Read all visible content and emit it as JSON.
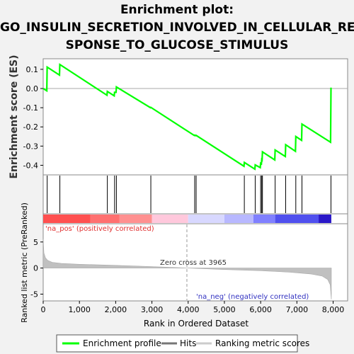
{
  "title": {
    "line1": "Enrichment plot:",
    "line2": "GO_INSULIN_SECRETION_INVOLVED_IN_CELLULAR_RE",
    "line3": "SPONSE_TO_GLUCOSE_STIMULUS"
  },
  "chart_data": {
    "type": "line",
    "xlabel": "Rank in Ordered Dataset",
    "xlim": [
      0,
      8400
    ],
    "x_ticks": [
      0,
      1000,
      2000,
      3000,
      4000,
      5000,
      6000,
      7000,
      8000
    ],
    "x_tick_labels": [
      "0",
      "1,000",
      "2,000",
      "3,000",
      "4,000",
      "5,000",
      "6,000",
      "7,000",
      "8,000"
    ],
    "es_panel": {
      "ylabel": "Enrichment score (ES)",
      "ylim": [
        -0.45,
        0.155
      ],
      "y_ticks": [
        0.1,
        0.0,
        -0.1,
        -0.2,
        -0.3,
        -0.4
      ],
      "y_tick_labels": [
        "0.1",
        "0.0",
        "-0.1",
        "-0.2",
        "-0.3",
        "-0.4"
      ],
      "series_name": "Enrichment profile",
      "color": "#00ff00",
      "points": [
        [
          0,
          0.0
        ],
        [
          100,
          -0.012
        ],
        [
          110,
          0.112
        ],
        [
          450,
          0.07
        ],
        [
          460,
          0.125
        ],
        [
          1760,
          -0.035
        ],
        [
          1770,
          -0.015
        ],
        [
          1960,
          -0.038
        ],
        [
          1970,
          -0.02
        ],
        [
          2010,
          -0.02
        ],
        [
          2020,
          0.008
        ],
        [
          2960,
          -0.1
        ],
        [
          2970,
          -0.098
        ],
        [
          4170,
          -0.245
        ],
        [
          4180,
          -0.243
        ],
        [
          4210,
          -0.246
        ],
        [
          4220,
          -0.244
        ],
        [
          5540,
          -0.405
        ],
        [
          5550,
          -0.385
        ],
        [
          5840,
          -0.42
        ],
        [
          5850,
          -0.398
        ],
        [
          5990,
          -0.412
        ],
        [
          6000,
          -0.39
        ],
        [
          6020,
          -0.393
        ],
        [
          6030,
          -0.37
        ],
        [
          6040,
          -0.372
        ],
        [
          6050,
          -0.33
        ],
        [
          6390,
          -0.372
        ],
        [
          6400,
          -0.32
        ],
        [
          6680,
          -0.354
        ],
        [
          6690,
          -0.293
        ],
        [
          6960,
          -0.327
        ],
        [
          6970,
          -0.25
        ],
        [
          7130,
          -0.27
        ],
        [
          7140,
          -0.185
        ],
        [
          7930,
          -0.28
        ],
        [
          7940,
          0.005
        ]
      ]
    },
    "hits": {
      "name": "Hits",
      "positions": [
        110,
        460,
        1770,
        1970,
        2020,
        2970,
        4180,
        4220,
        5550,
        5850,
        6000,
        6030,
        6050,
        6400,
        6690,
        6970,
        7140,
        7940
      ]
    },
    "color_bar": {
      "positive_label": "'na_pos' (positively correlated)",
      "negative_label": "'na_neg' (negatively correlated)",
      "segments": [
        [
          0,
          1300,
          "#ff5050"
        ],
        [
          1300,
          2100,
          "#ff7070"
        ],
        [
          2100,
          3000,
          "#ff9090"
        ],
        [
          3000,
          4000,
          "#ffc8dc"
        ],
        [
          4000,
          5000,
          "#d8d8ff"
        ],
        [
          5000,
          5800,
          "#b8b8ff"
        ],
        [
          5800,
          6400,
          "#8080ff"
        ],
        [
          6400,
          7600,
          "#5050ee"
        ],
        [
          7600,
          7950,
          "#2a18c8"
        ]
      ]
    },
    "rank_panel": {
      "ylabel": "Ranked list metric (PreRanked)",
      "ylim": [
        -6.3,
        8.5
      ],
      "y_ticks": [
        5,
        0,
        -5
      ],
      "y_tick_labels": [
        "5",
        "0",
        "-5"
      ],
      "series_name": "Ranking metric scores",
      "zero_cross": 3965,
      "zero_cross_label": "Zero cross at 3965",
      "profile": [
        [
          0,
          5.6
        ],
        [
          20,
          2.9
        ],
        [
          60,
          2.0
        ],
        [
          120,
          1.5
        ],
        [
          250,
          1.1
        ],
        [
          500,
          0.88
        ],
        [
          1000,
          0.72
        ],
        [
          2000,
          0.52
        ],
        [
          3000,
          0.28
        ],
        [
          3965,
          0.0
        ],
        [
          5000,
          -0.28
        ],
        [
          6000,
          -0.5
        ],
        [
          6800,
          -0.8
        ],
        [
          7400,
          -1.15
        ],
        [
          7700,
          -1.55
        ],
        [
          7850,
          -2.2
        ],
        [
          7920,
          -3.2
        ],
        [
          7950,
          -6.0
        ]
      ]
    },
    "legend": [
      "Enrichment profile",
      "Hits",
      "Ranking metric scores"
    ],
    "legend_position": "bottom"
  }
}
